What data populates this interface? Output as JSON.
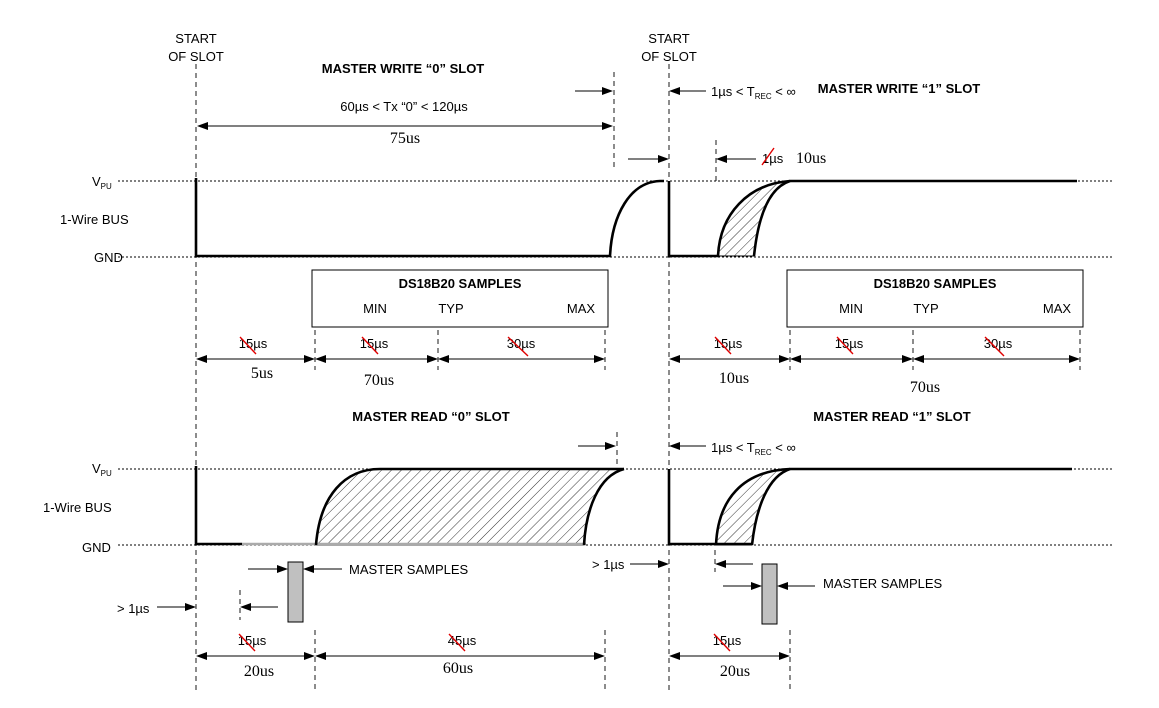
{
  "labels": {
    "start_of_slot_l1": "START",
    "start_of_slot_l2": "OF SLOT",
    "vpu_main": "V",
    "vpu_sub": "PU",
    "bus": "1-Wire BUS",
    "gnd": "GND",
    "trec_prefix": "1µs < T",
    "trec_sub": "REC",
    "trec_suffix": " < ∞",
    "gt_1us": "> 1µs",
    "master_samples": "MASTER SAMPLES"
  },
  "write0": {
    "title": "MASTER WRITE “0” SLOT",
    "range": "60µs < Tx “0” < 120µs",
    "value": "75us"
  },
  "write1": {
    "title": "MASTER WRITE “1” SLOT",
    "old_release": "1µs",
    "new_release": "10us"
  },
  "samples_left": {
    "title": "DS18B20 SAMPLES",
    "min": "MIN",
    "typ": "TYP",
    "max": "MAX",
    "old_a": "15µs",
    "new_a": "5us",
    "old_b": "15µs",
    "new_b": "70us",
    "old_c": "30µs"
  },
  "samples_right": {
    "title": "DS18B20 SAMPLES",
    "min": "MIN",
    "typ": "TYP",
    "max": "MAX",
    "old_a": "15µs",
    "new_a": "10us",
    "old_b": "15µs",
    "new_b": "70us",
    "old_c": "30µs"
  },
  "read0": {
    "title": "MASTER READ “0” SLOT",
    "old_a": "15µs",
    "new_a": "20us",
    "old_b": "45µs",
    "new_b": "60us"
  },
  "read1": {
    "title": "MASTER READ “1” SLOT",
    "old_a": "15µs",
    "new_a": "20us"
  }
}
